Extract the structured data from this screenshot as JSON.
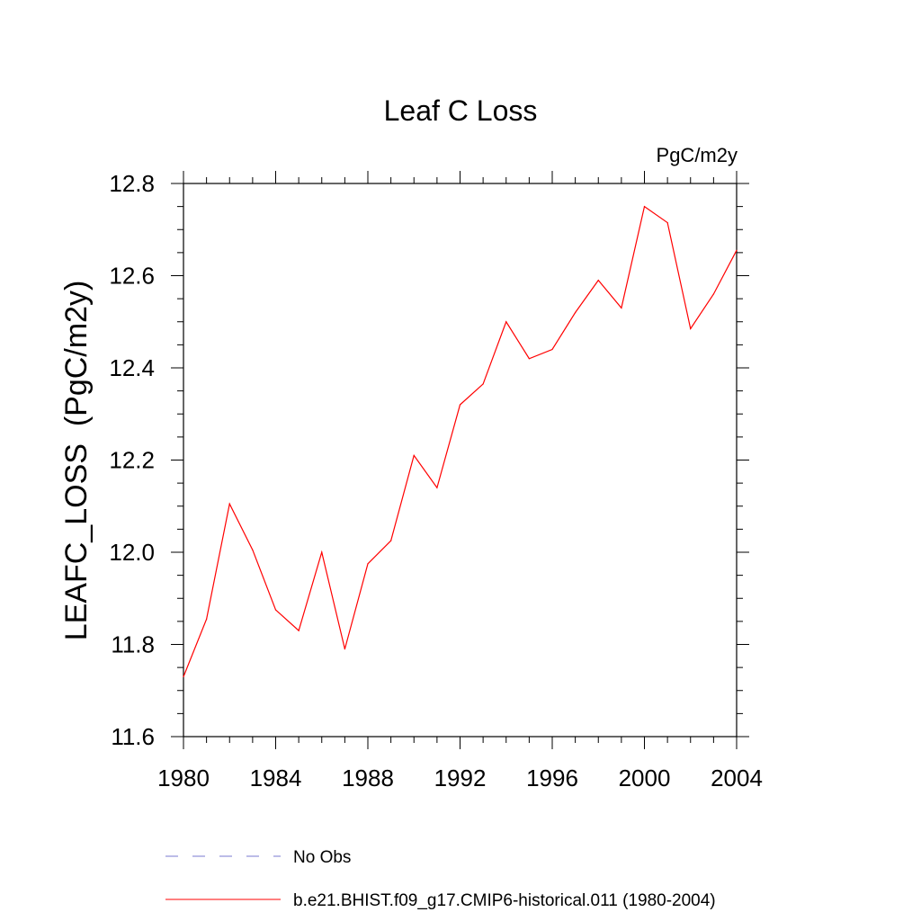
{
  "chart_data": {
    "type": "line",
    "title": "Leaf C Loss",
    "units": "PgC/m2y",
    "ylabel": "LEAFC_LOSS  (PgC/m2y)",
    "xlabel": "",
    "xlim": [
      1980,
      2004
    ],
    "ylim": [
      11.6,
      12.8
    ],
    "x_ticks": [
      "1980",
      "1984",
      "1988",
      "1992",
      "1996",
      "2000",
      "2004"
    ],
    "y_ticks": [
      "11.6",
      "11.8",
      "12.0",
      "12.2",
      "12.4",
      "12.6",
      "12.8"
    ],
    "x": [
      1980,
      1981,
      1982,
      1983,
      1984,
      1985,
      1986,
      1987,
      1988,
      1989,
      1990,
      1991,
      1992,
      1993,
      1994,
      1995,
      1996,
      1997,
      1998,
      1999,
      2000,
      2001,
      2002,
      2003,
      2004
    ],
    "series": [
      {
        "name": "b.e21.BHIST.f09_g17.CMIP6-historical.011 (1980-2004)",
        "color": "#ff0000",
        "values": [
          11.73,
          11.855,
          12.105,
          12.005,
          11.875,
          11.83,
          12.0,
          11.79,
          11.975,
          12.025,
          12.21,
          12.14,
          12.32,
          12.365,
          12.5,
          12.42,
          12.44,
          12.52,
          12.59,
          12.53,
          12.75,
          12.715,
          12.485,
          12.56,
          12.655
        ]
      }
    ],
    "legend": [
      {
        "label": "No Obs",
        "style": "dashed",
        "color": "#7a7ad0"
      },
      {
        "label": "b.e21.BHIST.f09_g17.CMIP6-historical.011 (1980-2004)",
        "style": "solid",
        "color": "#ff0000"
      }
    ],
    "grid": false
  }
}
